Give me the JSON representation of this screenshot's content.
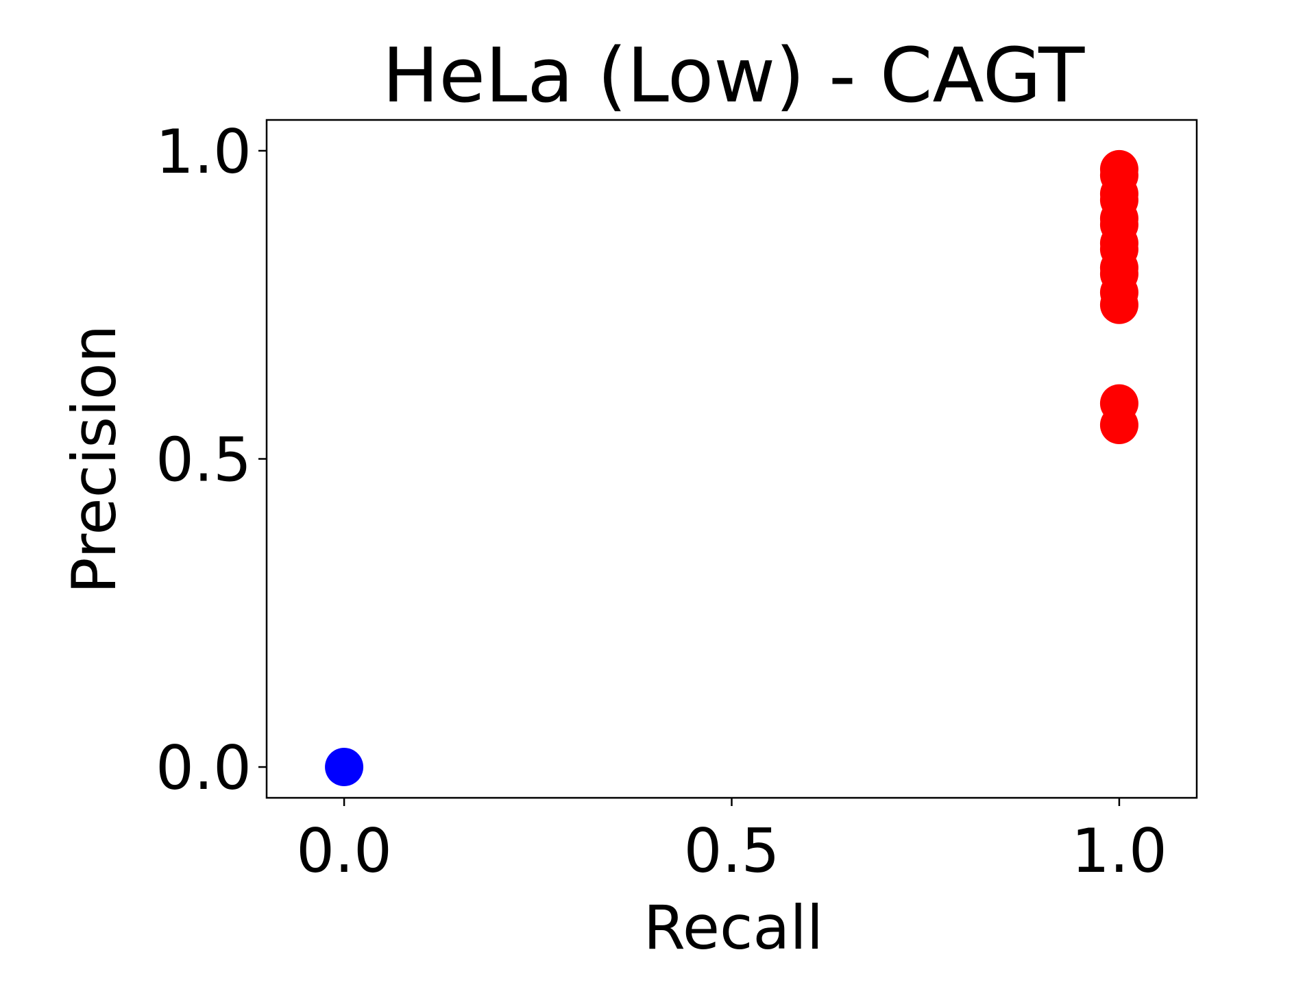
{
  "chart_data": {
    "type": "scatter",
    "title": "HeLa (Low) - CAGT",
    "xlabel": "Recall",
    "ylabel": "Precision",
    "xlim": [
      -0.1,
      1.1
    ],
    "ylim": [
      -0.05,
      1.05
    ],
    "xticks": [
      0.0,
      0.5,
      1.0
    ],
    "xtick_labels": [
      "0.0",
      "0.5",
      "1.0"
    ],
    "yticks": [
      0.0,
      0.5,
      1.0
    ],
    "ytick_labels": [
      "0.0",
      "0.5",
      "1.0"
    ],
    "grid": false,
    "series": [
      {
        "color": "#0000ff",
        "x": [
          0.0
        ],
        "y": [
          0.0
        ]
      },
      {
        "color": "#ff0000",
        "x": [
          1.0,
          1.0,
          1.0,
          1.0,
          1.0,
          1.0,
          1.0,
          1.0,
          1.0,
          1.0,
          1.0,
          1.0,
          1.0,
          1.0
        ],
        "y": [
          0.97,
          0.96,
          0.93,
          0.92,
          0.89,
          0.88,
          0.85,
          0.84,
          0.81,
          0.8,
          0.77,
          0.75,
          0.59,
          0.555
        ]
      }
    ]
  }
}
